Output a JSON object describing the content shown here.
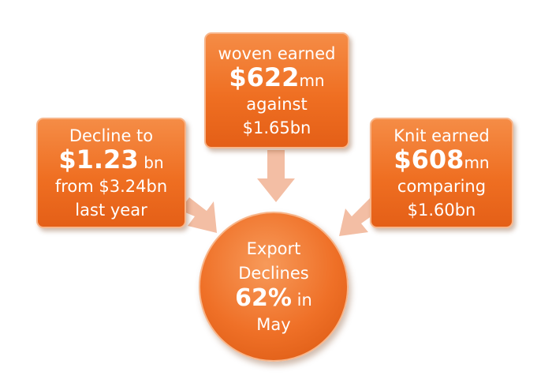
{
  "colors": {
    "box_fill": "#ef6f22",
    "box_border": "#f7b58a",
    "arrow": "#f2b79a"
  },
  "left_box": {
    "line1": "Decline to",
    "amount": "$1.23",
    "unit": "bn",
    "line3": "from $3.24bn",
    "line4": "last year"
  },
  "top_box": {
    "line1": "woven earned",
    "amount": "$622",
    "unit": "mn",
    "line3": "against",
    "line4": "$1.65bn"
  },
  "right_box": {
    "line1": "Knit earned",
    "amount": "$608",
    "unit": "mn",
    "line3": "comparing",
    "line4": "$1.60bn"
  },
  "center": {
    "line1": "Export",
    "line2": "Declines",
    "percent": "62%",
    "percent_suffix": "in",
    "line4": "May"
  }
}
